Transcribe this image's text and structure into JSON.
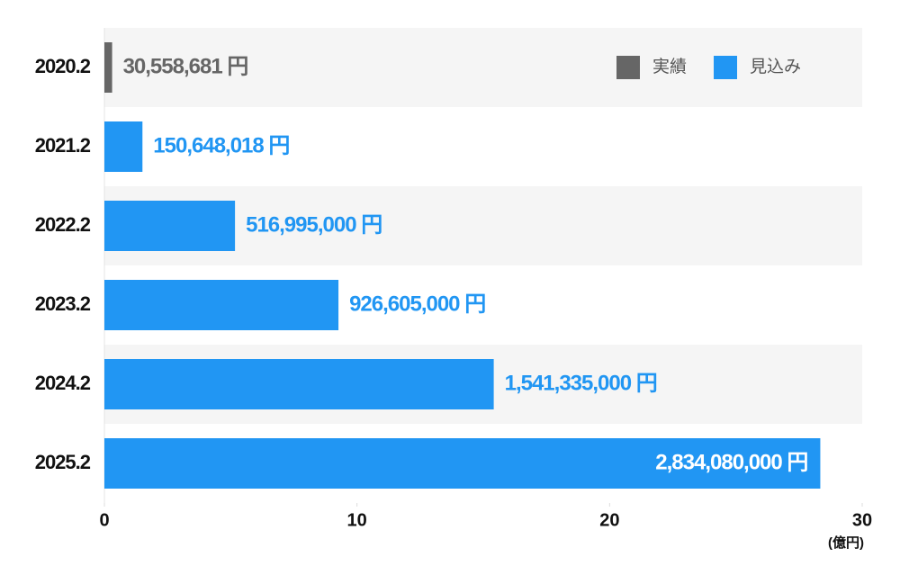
{
  "chart_data": {
    "type": "bar",
    "orientation": "horizontal",
    "categories": [
      "2020.2",
      "2021.2",
      "2022.2",
      "2023.2",
      "2024.2",
      "2025.2"
    ],
    "series": [
      {
        "name": "実績",
        "color": "#666666",
        "values": [
          0.30558681,
          null,
          null,
          null,
          null,
          null
        ],
        "value_labels": [
          "30,558,681 円",
          null,
          null,
          null,
          null,
          null
        ]
      },
      {
        "name": "見込み",
        "color": "#2196f3",
        "values": [
          null,
          1.50648018,
          5.16995,
          9.26605,
          15.41335,
          28.3408
        ],
        "value_labels": [
          null,
          "150,648,018 円",
          "516,995,000 円",
          "926,605,000 円",
          "1,541,335,000 円",
          "2,834,080,000 円"
        ]
      }
    ],
    "xlim": [
      0,
      30
    ],
    "xticks": [
      0,
      10,
      20,
      30
    ],
    "x_label": "(億円)",
    "legend": "upper right",
    "grid": false
  }
}
